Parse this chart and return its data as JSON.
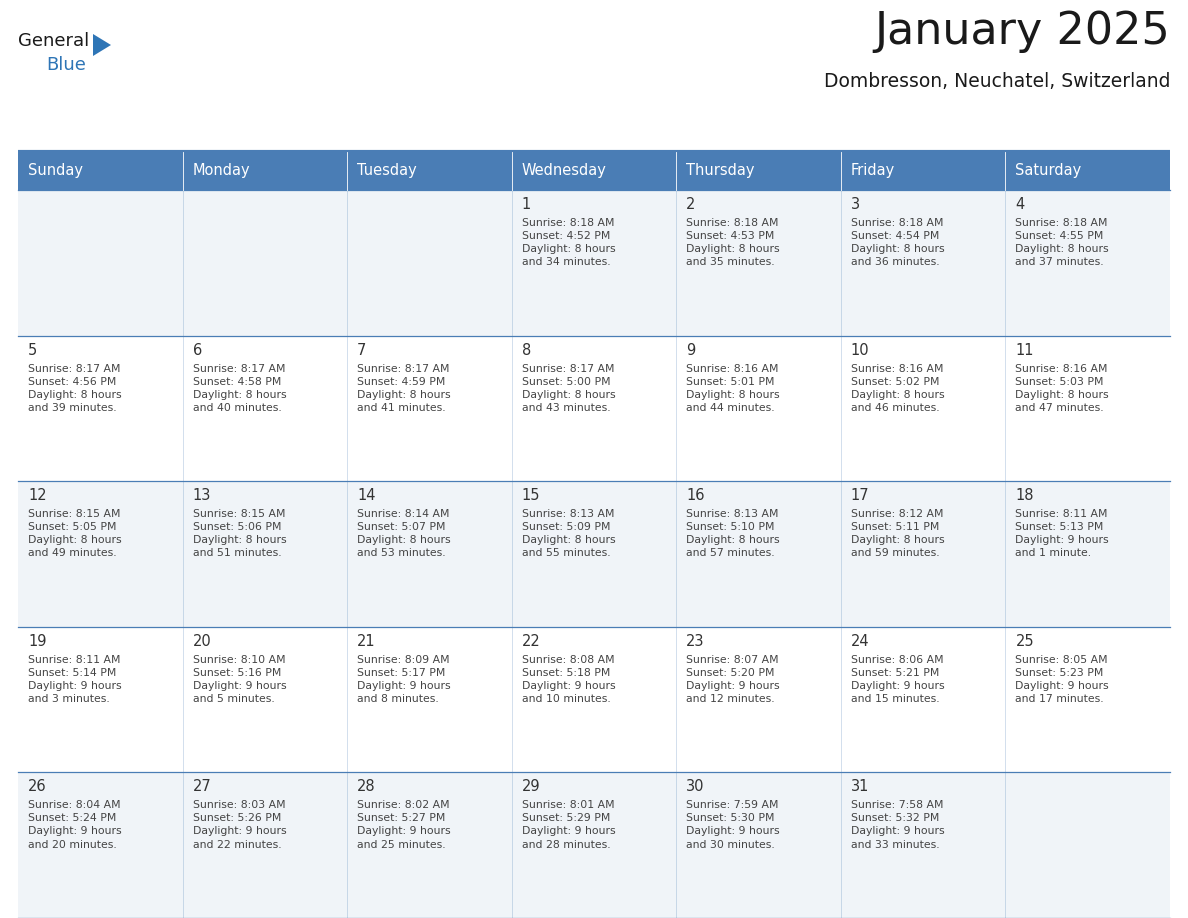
{
  "title": "January 2025",
  "subtitle": "Dombresson, Neuchatel, Switzerland",
  "days_of_week": [
    "Sunday",
    "Monday",
    "Tuesday",
    "Wednesday",
    "Thursday",
    "Friday",
    "Saturday"
  ],
  "header_bg": "#4A7DB5",
  "header_text": "#FFFFFF",
  "odd_row_bg": "#F0F4F8",
  "even_row_bg": "#FFFFFF",
  "cell_text_color": "#444444",
  "day_num_color": "#333333",
  "border_color": "#4A7DB5",
  "logo_general_color": "#1a1a1a",
  "logo_blue_color": "#2E75B6",
  "calendar_data": [
    [
      {
        "day": null
      },
      {
        "day": null
      },
      {
        "day": null
      },
      {
        "day": 1,
        "sunrise": "8:18 AM",
        "sunset": "4:52 PM",
        "daylight": "8 hours and 34 minutes."
      },
      {
        "day": 2,
        "sunrise": "8:18 AM",
        "sunset": "4:53 PM",
        "daylight": "8 hours and 35 minutes."
      },
      {
        "day": 3,
        "sunrise": "8:18 AM",
        "sunset": "4:54 PM",
        "daylight": "8 hours and 36 minutes."
      },
      {
        "day": 4,
        "sunrise": "8:18 AM",
        "sunset": "4:55 PM",
        "daylight": "8 hours and 37 minutes."
      }
    ],
    [
      {
        "day": 5,
        "sunrise": "8:17 AM",
        "sunset": "4:56 PM",
        "daylight": "8 hours and 39 minutes."
      },
      {
        "day": 6,
        "sunrise": "8:17 AM",
        "sunset": "4:58 PM",
        "daylight": "8 hours and 40 minutes."
      },
      {
        "day": 7,
        "sunrise": "8:17 AM",
        "sunset": "4:59 PM",
        "daylight": "8 hours and 41 minutes."
      },
      {
        "day": 8,
        "sunrise": "8:17 AM",
        "sunset": "5:00 PM",
        "daylight": "8 hours and 43 minutes."
      },
      {
        "day": 9,
        "sunrise": "8:16 AM",
        "sunset": "5:01 PM",
        "daylight": "8 hours and 44 minutes."
      },
      {
        "day": 10,
        "sunrise": "8:16 AM",
        "sunset": "5:02 PM",
        "daylight": "8 hours and 46 minutes."
      },
      {
        "day": 11,
        "sunrise": "8:16 AM",
        "sunset": "5:03 PM",
        "daylight": "8 hours and 47 minutes."
      }
    ],
    [
      {
        "day": 12,
        "sunrise": "8:15 AM",
        "sunset": "5:05 PM",
        "daylight": "8 hours and 49 minutes."
      },
      {
        "day": 13,
        "sunrise": "8:15 AM",
        "sunset": "5:06 PM",
        "daylight": "8 hours and 51 minutes."
      },
      {
        "day": 14,
        "sunrise": "8:14 AM",
        "sunset": "5:07 PM",
        "daylight": "8 hours and 53 minutes."
      },
      {
        "day": 15,
        "sunrise": "8:13 AM",
        "sunset": "5:09 PM",
        "daylight": "8 hours and 55 minutes."
      },
      {
        "day": 16,
        "sunrise": "8:13 AM",
        "sunset": "5:10 PM",
        "daylight": "8 hours and 57 minutes."
      },
      {
        "day": 17,
        "sunrise": "8:12 AM",
        "sunset": "5:11 PM",
        "daylight": "8 hours and 59 minutes."
      },
      {
        "day": 18,
        "sunrise": "8:11 AM",
        "sunset": "5:13 PM",
        "daylight": "9 hours and 1 minute."
      }
    ],
    [
      {
        "day": 19,
        "sunrise": "8:11 AM",
        "sunset": "5:14 PM",
        "daylight": "9 hours and 3 minutes."
      },
      {
        "day": 20,
        "sunrise": "8:10 AM",
        "sunset": "5:16 PM",
        "daylight": "9 hours and 5 minutes."
      },
      {
        "day": 21,
        "sunrise": "8:09 AM",
        "sunset": "5:17 PM",
        "daylight": "9 hours and 8 minutes."
      },
      {
        "day": 22,
        "sunrise": "8:08 AM",
        "sunset": "5:18 PM",
        "daylight": "9 hours and 10 minutes."
      },
      {
        "day": 23,
        "sunrise": "8:07 AM",
        "sunset": "5:20 PM",
        "daylight": "9 hours and 12 minutes."
      },
      {
        "day": 24,
        "sunrise": "8:06 AM",
        "sunset": "5:21 PM",
        "daylight": "9 hours and 15 minutes."
      },
      {
        "day": 25,
        "sunrise": "8:05 AM",
        "sunset": "5:23 PM",
        "daylight": "9 hours and 17 minutes."
      }
    ],
    [
      {
        "day": 26,
        "sunrise": "8:04 AM",
        "sunset": "5:24 PM",
        "daylight": "9 hours and 20 minutes."
      },
      {
        "day": 27,
        "sunrise": "8:03 AM",
        "sunset": "5:26 PM",
        "daylight": "9 hours and 22 minutes."
      },
      {
        "day": 28,
        "sunrise": "8:02 AM",
        "sunset": "5:27 PM",
        "daylight": "9 hours and 25 minutes."
      },
      {
        "day": 29,
        "sunrise": "8:01 AM",
        "sunset": "5:29 PM",
        "daylight": "9 hours and 28 minutes."
      },
      {
        "day": 30,
        "sunrise": "7:59 AM",
        "sunset": "5:30 PM",
        "daylight": "9 hours and 30 minutes."
      },
      {
        "day": 31,
        "sunrise": "7:58 AM",
        "sunset": "5:32 PM",
        "daylight": "9 hours and 33 minutes."
      },
      {
        "day": null
      }
    ]
  ]
}
